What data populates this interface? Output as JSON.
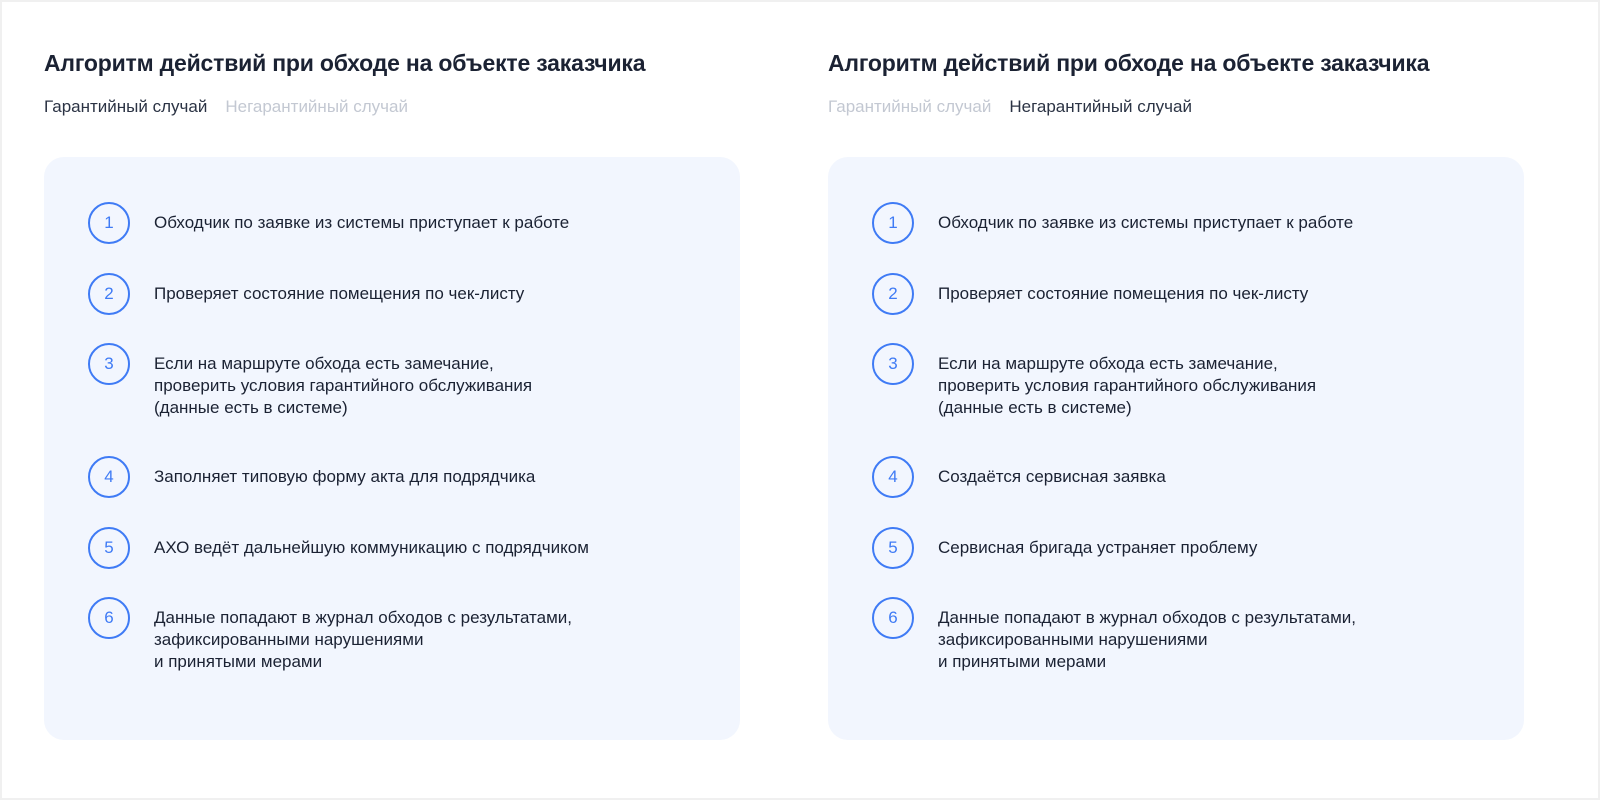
{
  "panels": [
    {
      "title": "Алгоритм действий при обходе на объекте заказчика",
      "tabs": [
        {
          "label": "Гарантийный случай",
          "active": true
        },
        {
          "label": "Негарантийный случай",
          "active": false
        }
      ],
      "steps": [
        {
          "num": "1",
          "text": "Обходчик по заявке из системы приступает к работе"
        },
        {
          "num": "2",
          "text": "Проверяет состояние помещения по чек-листу"
        },
        {
          "num": "3",
          "text": "Если на маршруте обхода есть замечание,\nпроверить условия гарантийного обслуживания\n(данные есть в системе)"
        },
        {
          "num": "4",
          "text": "Заполняет типовую форму акта для подрядчика"
        },
        {
          "num": "5",
          "text": "АХО ведёт дальнейшую коммуникацию с подрядчиком"
        },
        {
          "num": "6",
          "text": "Данные попадают в журнал обходов с результатами,\nзафиксированными нарушениями\nи принятыми мерами"
        }
      ]
    },
    {
      "title": "Алгоритм действий при обходе на объекте заказчика",
      "tabs": [
        {
          "label": "Гарантийный случай",
          "active": false
        },
        {
          "label": "Негарантийный случай",
          "active": true
        }
      ],
      "steps": [
        {
          "num": "1",
          "text": "Обходчик по заявке из системы приступает к работе"
        },
        {
          "num": "2",
          "text": "Проверяет состояние помещения по чек-листу"
        },
        {
          "num": "3",
          "text": "Если на маршруте обхода есть замечание,\nпроверить условия гарантийного обслуживания\n(данные есть в системе)"
        },
        {
          "num": "4",
          "text": "Создаётся сервисная заявка"
        },
        {
          "num": "5",
          "text": "Сервисная бригада устраняет проблему"
        },
        {
          "num": "6",
          "text": "Данные попадают в журнал обходов с результатами,\nзафиксированными нарушениями\nи принятыми мерами"
        }
      ]
    }
  ],
  "colors": {
    "accent": "#3f7bf5",
    "card": "#f2f6fe",
    "inactive_tab": "#c3c8d2"
  }
}
